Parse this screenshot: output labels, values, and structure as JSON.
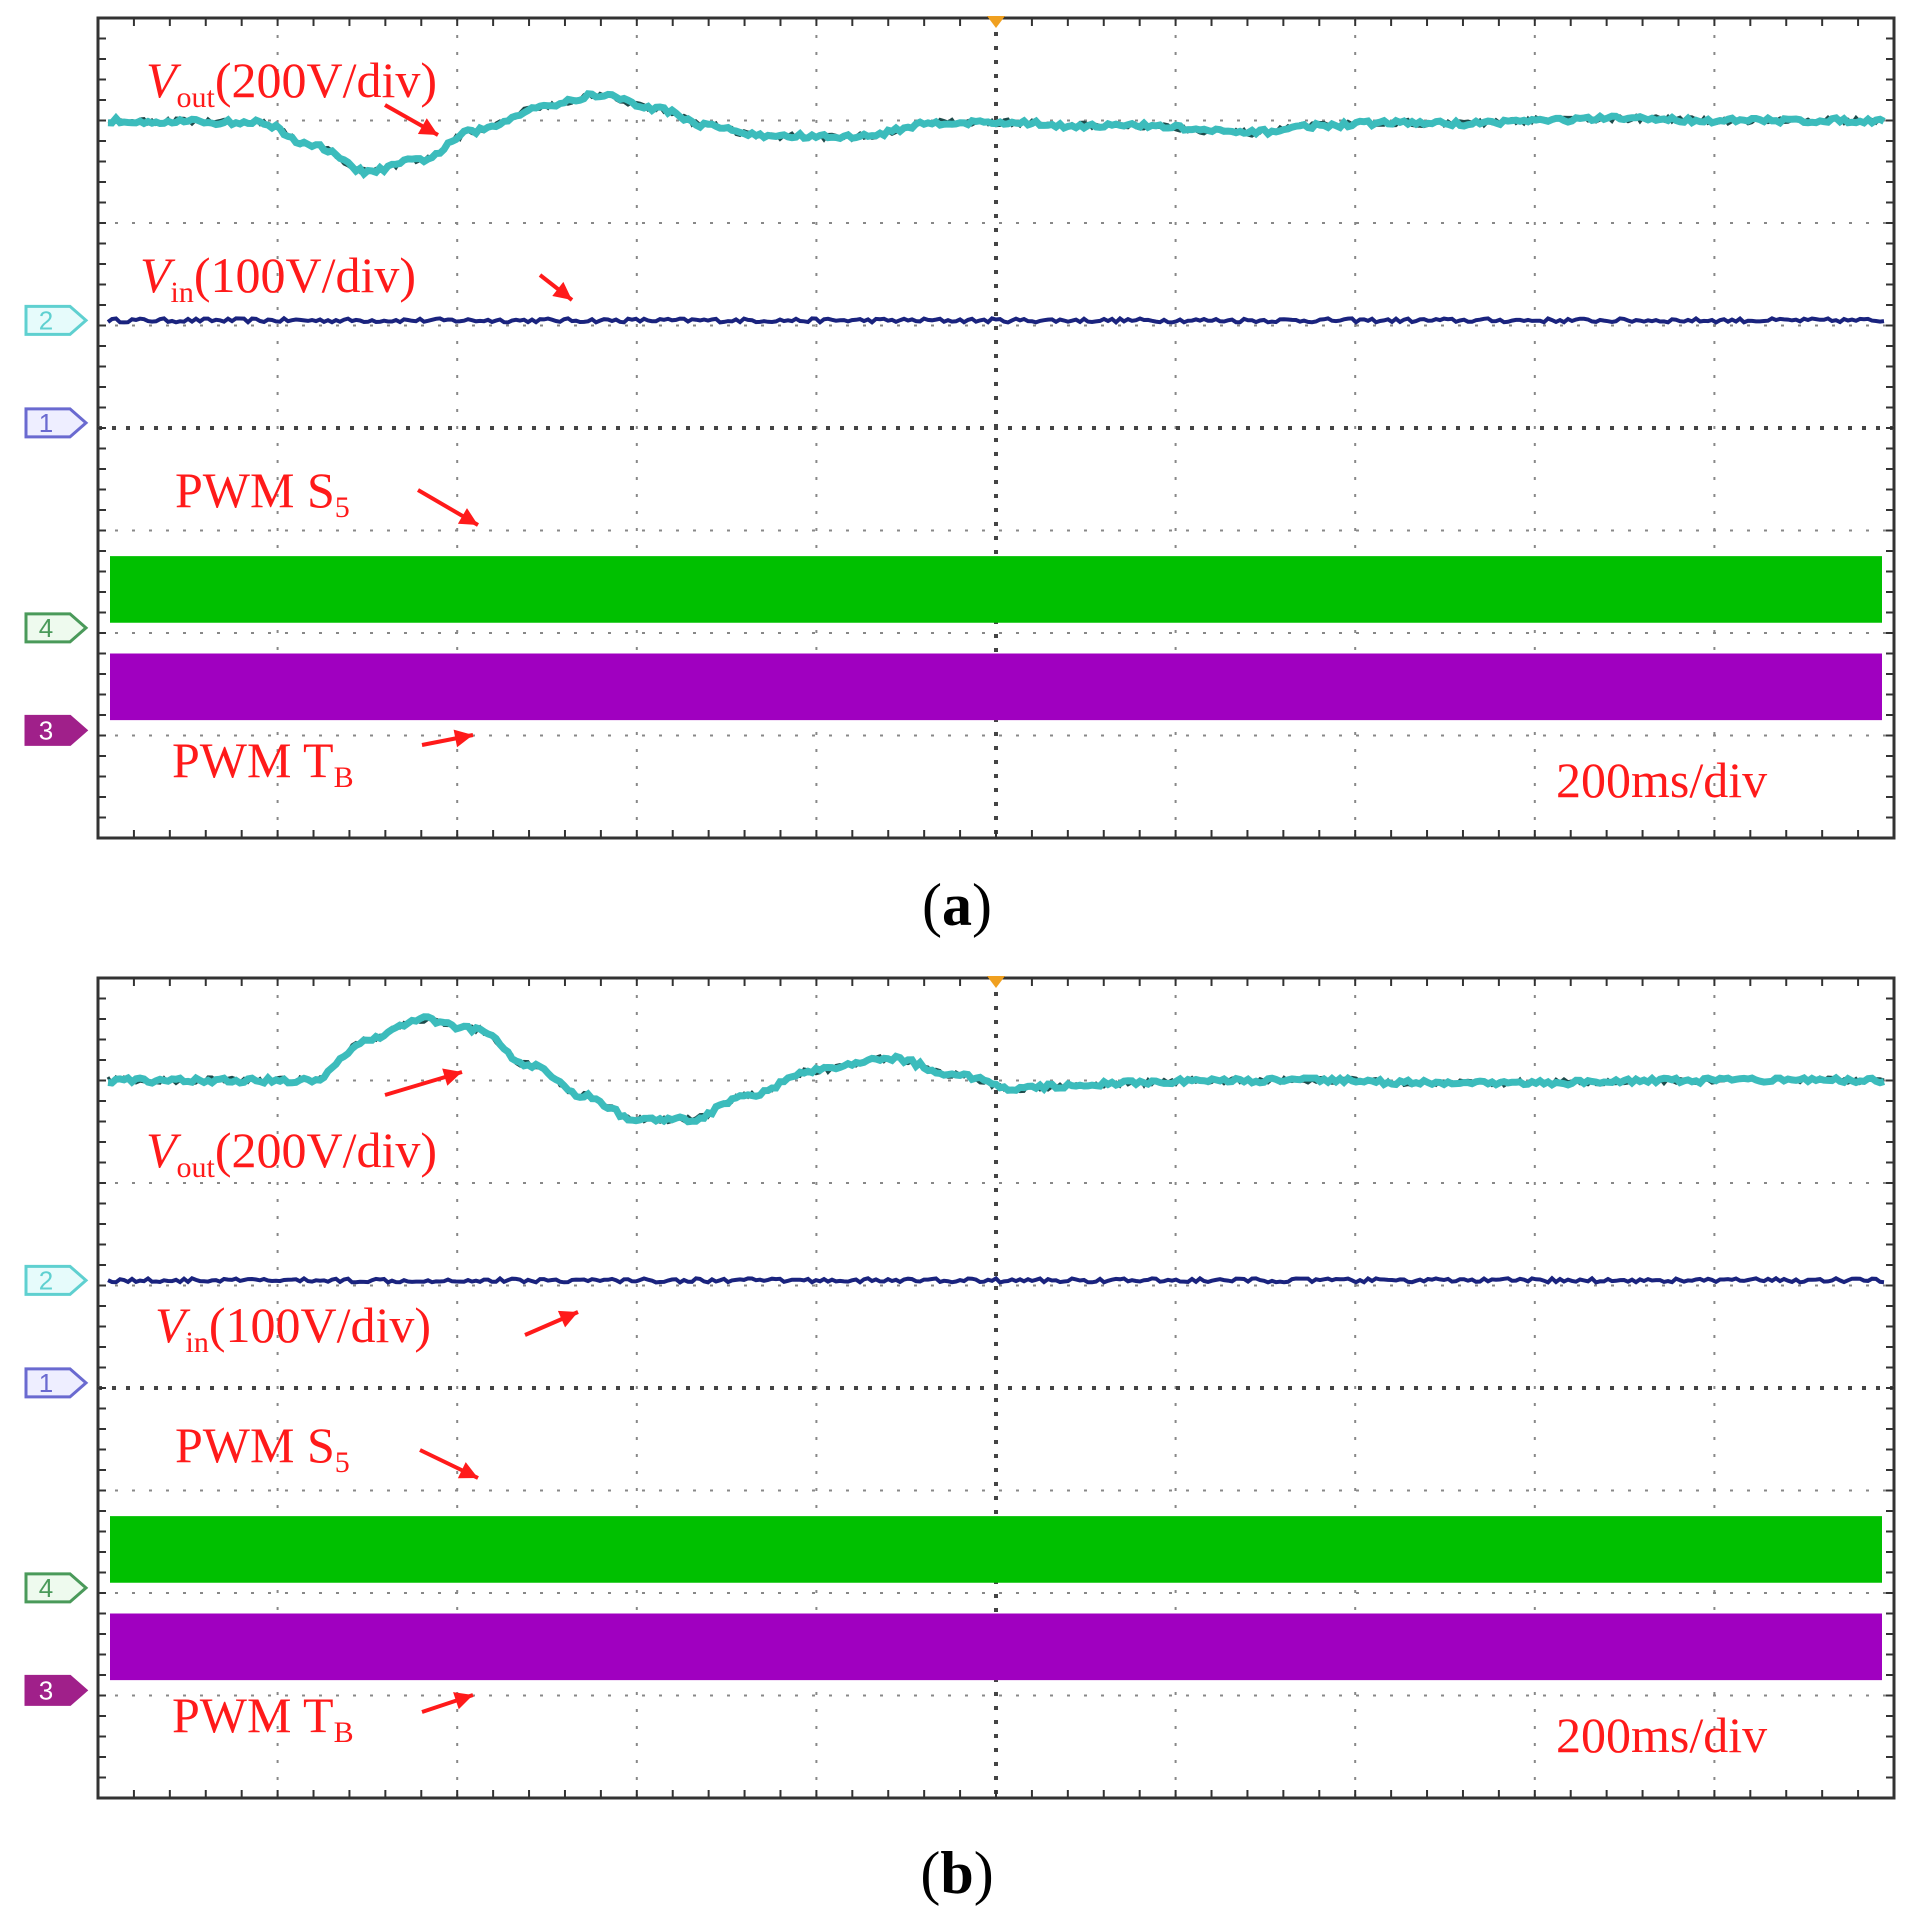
{
  "figure": {
    "panels": [
      {
        "label_open": "(",
        "label": "a",
        "label_close": ")",
        "time_scale": "200ms/div",
        "annotations": {
          "vout_symbol": "V",
          "vout_sub": "out",
          "vout_scale": "(200V/div)",
          "vin_symbol": "V",
          "vin_sub": "in",
          "vin_scale": "(100V/div)",
          "pwm_s_prefix": "PWM S",
          "pwm_s_sub": "5",
          "pwm_t_prefix": "PWM T",
          "pwm_t_sub": "B"
        },
        "channel_markers": [
          "2",
          "1",
          "4",
          "3"
        ]
      },
      {
        "label_open": "(",
        "label": "b",
        "label_close": ")",
        "time_scale": "200ms/div",
        "annotations": {
          "vout_symbol": "V",
          "vout_sub": "out",
          "vout_scale": "(200V/div)",
          "vin_symbol": "V",
          "vin_sub": "in",
          "vin_scale": "(100V/div)",
          "pwm_s_prefix": "PWM S",
          "pwm_s_sub": "5",
          "pwm_t_prefix": "PWM T",
          "pwm_t_sub": "B"
        },
        "channel_markers": [
          "2",
          "1",
          "4",
          "3"
        ]
      }
    ]
  },
  "chart_data": [
    {
      "type": "line",
      "title": "(a)",
      "x_unit": "div",
      "y_unit": "div",
      "xlim": [
        0,
        10
      ],
      "ylim": [
        0,
        8
      ],
      "grid": true,
      "series": [
        {
          "name": "Vout (200V/div)",
          "color": "#3cbcbc",
          "x": [
            0,
            0.9,
            1.2,
            1.5,
            1.8,
            2.1,
            2.5,
            2.8,
            3.1,
            3.4,
            3.7,
            4.2,
            4.7,
            5.1,
            5.4,
            5.8,
            6.4,
            6.8,
            7.2,
            7.6,
            8.0,
            8.5,
            9.0,
            10
          ],
          "values": [
            7.0,
            6.98,
            6.75,
            6.5,
            6.62,
            6.9,
            7.15,
            7.25,
            7.12,
            6.95,
            6.85,
            6.84,
            6.98,
            6.98,
            6.95,
            6.95,
            6.88,
            6.95,
            6.98,
            6.97,
            7.0,
            7.02,
            7.0,
            7.0
          ]
        },
        {
          "name": "Vin (100V/div)",
          "color": "#1a237e",
          "x": [
            0,
            10
          ],
          "values": [
            5.05,
            5.05
          ]
        },
        {
          "name": "PWM S5",
          "color": "#00c000",
          "x": [
            0,
            10
          ],
          "band_y": [
            2.1,
            2.75
          ]
        },
        {
          "name": "PWM TB",
          "color": "#a000c0",
          "x": [
            0,
            10
          ],
          "band_y": [
            1.15,
            1.8
          ]
        }
      ]
    },
    {
      "type": "line",
      "title": "(b)",
      "x_unit": "div",
      "y_unit": "div",
      "xlim": [
        0,
        10
      ],
      "ylim": [
        0,
        8
      ],
      "grid": true,
      "series": [
        {
          "name": "Vout (200V/div)",
          "color": "#3cbcbc",
          "x": [
            0,
            1.2,
            1.5,
            1.8,
            2.1,
            2.4,
            2.7,
            3.0,
            3.3,
            3.6,
            4.0,
            4.4,
            4.8,
            5.1,
            5.4,
            5.8,
            6.2,
            6.8,
            7.4,
            8.0,
            9.0,
            10
          ],
          "values": [
            7.0,
            7.0,
            7.4,
            7.6,
            7.5,
            7.15,
            6.85,
            6.62,
            6.62,
            6.85,
            7.1,
            7.22,
            7.05,
            6.92,
            6.95,
            6.98,
            7.0,
            7.0,
            6.98,
            6.98,
            7.0,
            7.0
          ]
        },
        {
          "name": "Vin (100V/div)",
          "color": "#1a237e",
          "x": [
            0,
            10
          ],
          "values": [
            5.05,
            5.05
          ]
        },
        {
          "name": "PWM S5",
          "color": "#00c000",
          "x": [
            0,
            10
          ],
          "band_y": [
            2.1,
            2.75
          ]
        },
        {
          "name": "PWM TB",
          "color": "#a000c0",
          "x": [
            0,
            10
          ],
          "band_y": [
            1.15,
            1.8
          ]
        }
      ]
    }
  ]
}
